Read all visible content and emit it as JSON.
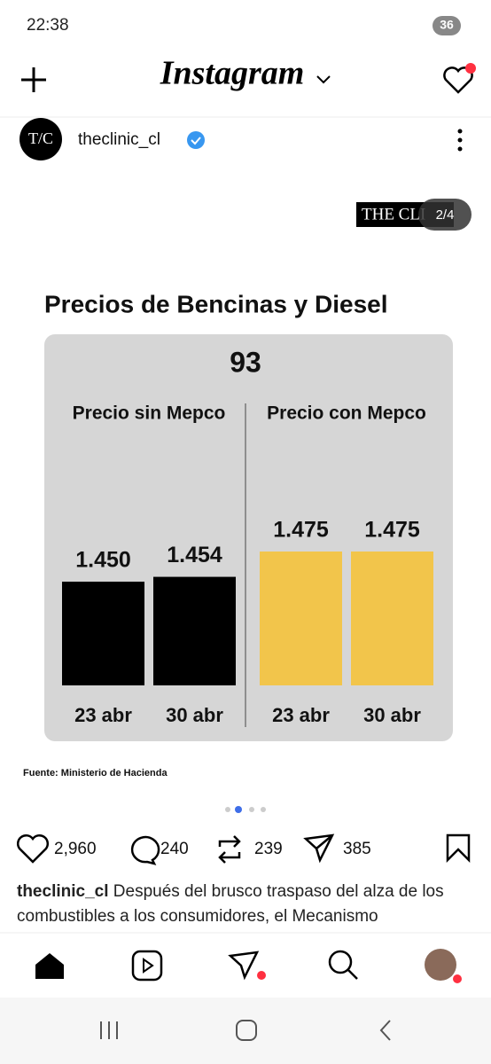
{
  "status_bar": {
    "time": "22:38",
    "battery": "36"
  },
  "header": {
    "title": "Instagram"
  },
  "post": {
    "username": "theclinic_cl",
    "avatar": "T/C",
    "image_brand": "THE CLI",
    "counter": "2/4",
    "chart_title": "Precios de Bencinas y Diesel",
    "chart_subtitle": "93",
    "source": "Fuente: Ministerio de Hacienda"
  },
  "actions": {
    "likes": "2,960",
    "comments": "240",
    "reposts": "239",
    "shares": "385"
  },
  "caption": {
    "username": "theclinic_cl",
    "text": "Después del brusco traspaso del alza de los combustibles a los consumidores, el Mecanismo"
  },
  "chart_data": [
    {
      "type": "bar",
      "title": "Precio sin Mepco",
      "categories": [
        "23 abr",
        "30 abr"
      ],
      "values": [
        1450,
        1454
      ],
      "value_labels": [
        "1.450",
        "1.454"
      ],
      "color": "#000000",
      "ylim": [
        1364,
        1475
      ]
    },
    {
      "type": "bar",
      "title": "Precio con Mepco",
      "categories": [
        "23 abr",
        "30 abr"
      ],
      "values": [
        1475,
        1475
      ],
      "value_labels": [
        "1.475",
        "1.475"
      ],
      "color": "#f2c54b",
      "ylim": [
        1364,
        1475
      ]
    }
  ]
}
